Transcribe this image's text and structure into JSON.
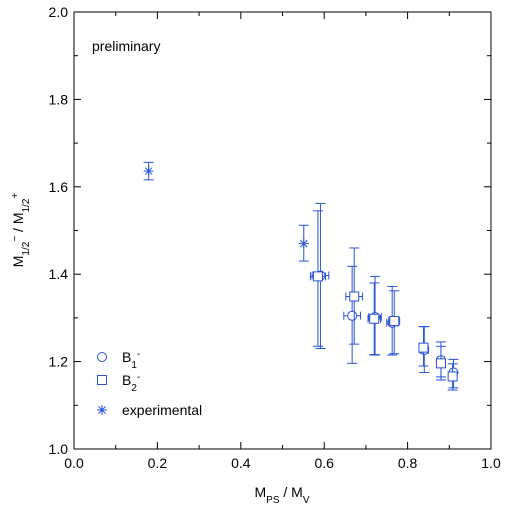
{
  "chart_data": {
    "type": "scatter",
    "title": "",
    "xlabel": {
      "main": "M",
      "sub1": "PS",
      "sep": " / M",
      "sub2": "V"
    },
    "ylabel": {
      "m1": "M",
      "s1": "1/2",
      "sup1": "−",
      "sep": " / M",
      "s2": "1/2",
      "sup2": "+"
    },
    "xlim": [
      0.0,
      1.0
    ],
    "ylim": [
      1.0,
      2.0
    ],
    "xticks": [
      "0.0",
      "0.2",
      "0.4",
      "0.6",
      "0.8",
      "1.0"
    ],
    "yticks": [
      "1.0",
      "1.2",
      "1.4",
      "1.6",
      "1.8",
      "2.0"
    ],
    "annotation": "preliminary",
    "legend_position": "bottom-left",
    "color": "#2a52d8",
    "series": [
      {
        "key": "b1",
        "name": {
          "main": "B",
          "sub": "1",
          "sup": "-"
        },
        "marker": "circle",
        "points": [
          {
            "x": 0.591,
            "y": 1.397,
            "xerr": 0.02,
            "ylo": 1.23,
            "yhi": 1.562
          },
          {
            "x": 0.667,
            "y": 1.305,
            "xerr": 0.02,
            "ylo": 1.196,
            "yhi": 1.418
          },
          {
            "x": 0.722,
            "y": 1.302,
            "xerr": 0.015,
            "ylo": 1.215,
            "yhi": 1.395
          },
          {
            "x": 0.763,
            "y": 1.289,
            "xerr": 0.013,
            "ylo": 1.215,
            "yhi": 1.372
          },
          {
            "x": 0.84,
            "y": 1.227,
            "xerr": 0.01,
            "ylo": 1.175,
            "yhi": 1.28
          },
          {
            "x": 0.88,
            "y": 1.203,
            "xerr": 0.008,
            "ylo": 1.165,
            "yhi": 1.245
          },
          {
            "x": 0.91,
            "y": 1.175,
            "xerr": 0.007,
            "ylo": 1.14,
            "yhi": 1.205
          }
        ]
      },
      {
        "key": "b2",
        "name": {
          "main": "B",
          "sub": "2",
          "sup": "-"
        },
        "marker": "square",
        "points": [
          {
            "x": 0.585,
            "y": 1.395,
            "xerr": 0.018,
            "ylo": 1.235,
            "yhi": 1.545
          },
          {
            "x": 0.672,
            "y": 1.349,
            "xerr": 0.02,
            "ylo": 1.24,
            "yhi": 1.46
          },
          {
            "x": 0.72,
            "y": 1.298,
            "xerr": 0.015,
            "ylo": 1.216,
            "yhi": 1.38
          },
          {
            "x": 0.768,
            "y": 1.293,
            "xerr": 0.013,
            "ylo": 1.218,
            "yhi": 1.362
          },
          {
            "x": 0.838,
            "y": 1.232,
            "xerr": 0.01,
            "ylo": 1.19,
            "yhi": 1.28
          },
          {
            "x": 0.88,
            "y": 1.196,
            "xerr": 0.008,
            "ylo": 1.158,
            "yhi": 1.235
          },
          {
            "x": 0.908,
            "y": 1.166,
            "xerr": 0.007,
            "ylo": 1.135,
            "yhi": 1.195
          }
        ]
      },
      {
        "key": "exp",
        "name": {
          "main": "experimental"
        },
        "marker": "asterisk",
        "points": [
          {
            "x": 0.179,
            "y": 1.636,
            "xerr": 0.0,
            "ylo": 1.616,
            "yhi": 1.656
          },
          {
            "x": 0.551,
            "y": 1.47,
            "xerr": 0.0,
            "ylo": 1.43,
            "yhi": 1.512
          }
        ]
      }
    ]
  }
}
